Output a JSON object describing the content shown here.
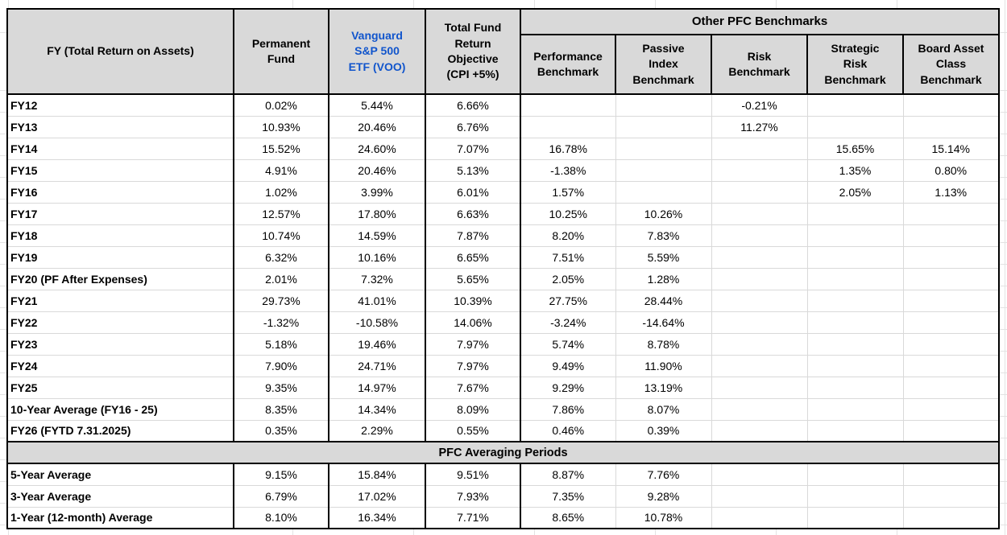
{
  "colors": {
    "header_bg": "#d9d9d9",
    "table_border": "#000000",
    "grid_line": "#d9d9d9",
    "outer_grid_line": "#e3e3e3",
    "link_blue": "#1155cc",
    "cell_bg": "#ffffff"
  },
  "table": {
    "header": {
      "fy_label": "FY (Total Return on Assets)",
      "permanent_fund": "Permanent Fund",
      "vanguard_link": "Vanguard S&P 500 ETF (VOO)",
      "total_fund_objective": "Total Fund Return Objective (CPI +5%)",
      "other_benchmarks_group": "Other PFC Benchmarks",
      "benchmark_cols": [
        "Performance Benchmark",
        "Passive Index Benchmark",
        "Risk Benchmark",
        "Strategic Risk Benchmark",
        "Board Asset Class Benchmark"
      ]
    },
    "rows": [
      {
        "label": "FY12",
        "values": [
          "0.02%",
          "5.44%",
          "6.66%",
          "",
          "",
          "-0.21%",
          "",
          ""
        ]
      },
      {
        "label": "FY13",
        "values": [
          "10.93%",
          "20.46%",
          "6.76%",
          "",
          "",
          "11.27%",
          "",
          ""
        ]
      },
      {
        "label": "FY14",
        "values": [
          "15.52%",
          "24.60%",
          "7.07%",
          "16.78%",
          "",
          "",
          "15.65%",
          "15.14%"
        ]
      },
      {
        "label": "FY15",
        "values": [
          "4.91%",
          "20.46%",
          "5.13%",
          "-1.38%",
          "",
          "",
          "1.35%",
          "0.80%"
        ]
      },
      {
        "label": "FY16",
        "values": [
          "1.02%",
          "3.99%",
          "6.01%",
          "1.57%",
          "",
          "",
          "2.05%",
          "1.13%"
        ]
      },
      {
        "label": "FY17",
        "values": [
          "12.57%",
          "17.80%",
          "6.63%",
          "10.25%",
          "10.26%",
          "",
          "",
          ""
        ]
      },
      {
        "label": "FY18",
        "values": [
          "10.74%",
          "14.59%",
          "7.87%",
          "8.20%",
          "7.83%",
          "",
          "",
          ""
        ]
      },
      {
        "label": "FY19",
        "values": [
          "6.32%",
          "10.16%",
          "6.65%",
          "7.51%",
          "5.59%",
          "",
          "",
          ""
        ]
      },
      {
        "label": "FY20 (PF After Expenses)",
        "values": [
          "2.01%",
          "7.32%",
          "5.65%",
          "2.05%",
          "1.28%",
          "",
          "",
          ""
        ]
      },
      {
        "label": "FY21",
        "values": [
          "29.73%",
          "41.01%",
          "10.39%",
          "27.75%",
          "28.44%",
          "",
          "",
          ""
        ]
      },
      {
        "label": "FY22",
        "values": [
          "-1.32%",
          "-10.58%",
          "14.06%",
          "-3.24%",
          "-14.64%",
          "",
          "",
          ""
        ]
      },
      {
        "label": "FY23",
        "values": [
          "5.18%",
          "19.46%",
          "7.97%",
          "5.74%",
          "8.78%",
          "",
          "",
          ""
        ]
      },
      {
        "label": "FY24",
        "values": [
          "7.90%",
          "24.71%",
          "7.97%",
          "9.49%",
          "11.90%",
          "",
          "",
          ""
        ]
      },
      {
        "label": "FY25",
        "values": [
          "9.35%",
          "14.97%",
          "7.67%",
          "9.29%",
          "13.19%",
          "",
          "",
          ""
        ]
      },
      {
        "label": "10-Year Average (FY16 - 25)",
        "values": [
          "8.35%",
          "14.34%",
          "8.09%",
          "7.86%",
          "8.07%",
          "",
          "",
          ""
        ]
      },
      {
        "label": "FY26 (FYTD 7.31.2025)",
        "values": [
          "0.35%",
          "2.29%",
          "0.55%",
          "0.46%",
          "0.39%",
          "",
          "",
          ""
        ]
      }
    ],
    "averaging": {
      "title": "PFC Averaging Periods",
      "rows": [
        {
          "label": "5-Year Average",
          "values": [
            "9.15%",
            "15.84%",
            "9.51%",
            "8.87%",
            "7.76%",
            "",
            "",
            ""
          ]
        },
        {
          "label": "3-Year Average",
          "values": [
            "6.79%",
            "17.02%",
            "7.93%",
            "7.35%",
            "9.28%",
            "",
            "",
            ""
          ]
        },
        {
          "label": "1-Year (12-month) Average",
          "values": [
            "8.10%",
            "16.34%",
            "7.71%",
            "8.65%",
            "10.78%",
            "",
            "",
            ""
          ]
        }
      ]
    }
  }
}
